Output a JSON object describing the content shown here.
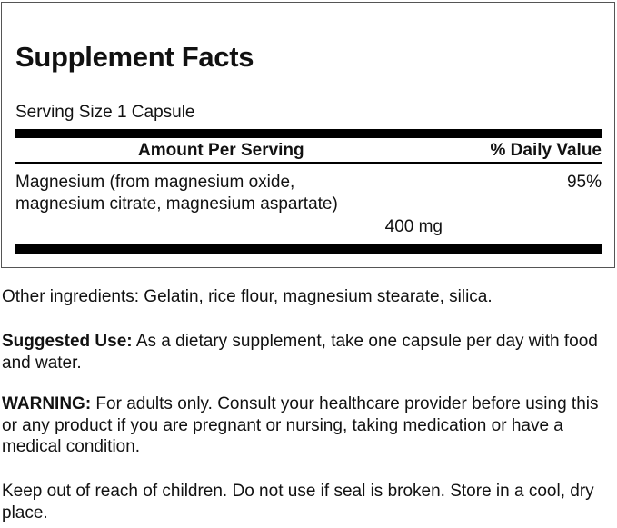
{
  "panel": {
    "title": "Supplement Facts",
    "serving_size": "Serving Size 1 Capsule",
    "header": {
      "amount": "Amount Per Serving",
      "daily_value": "% Daily Value"
    },
    "rows": [
      {
        "name_line1": "Magnesium (from magnesium oxide,",
        "name_line2": "magnesium citrate, magnesium aspartate)",
        "amount": "400 mg",
        "daily_value": "95%"
      }
    ]
  },
  "other_ingredients": "Other ingredients: Gelatin, rice flour, magnesium stearate, silica.",
  "suggested_use": {
    "label": "Suggested Use:",
    "text": " As a dietary supplement, take one capsule per day with food and water."
  },
  "warning": {
    "label": "WARNING:",
    "text": " For adults only. Consult your healthcare provider before using this or any product if you are pregnant or nursing, taking medication or have a medical condition."
  },
  "storage": "Keep out of reach of children. Do not use if seal is broken. Store in a cool, dry place."
}
